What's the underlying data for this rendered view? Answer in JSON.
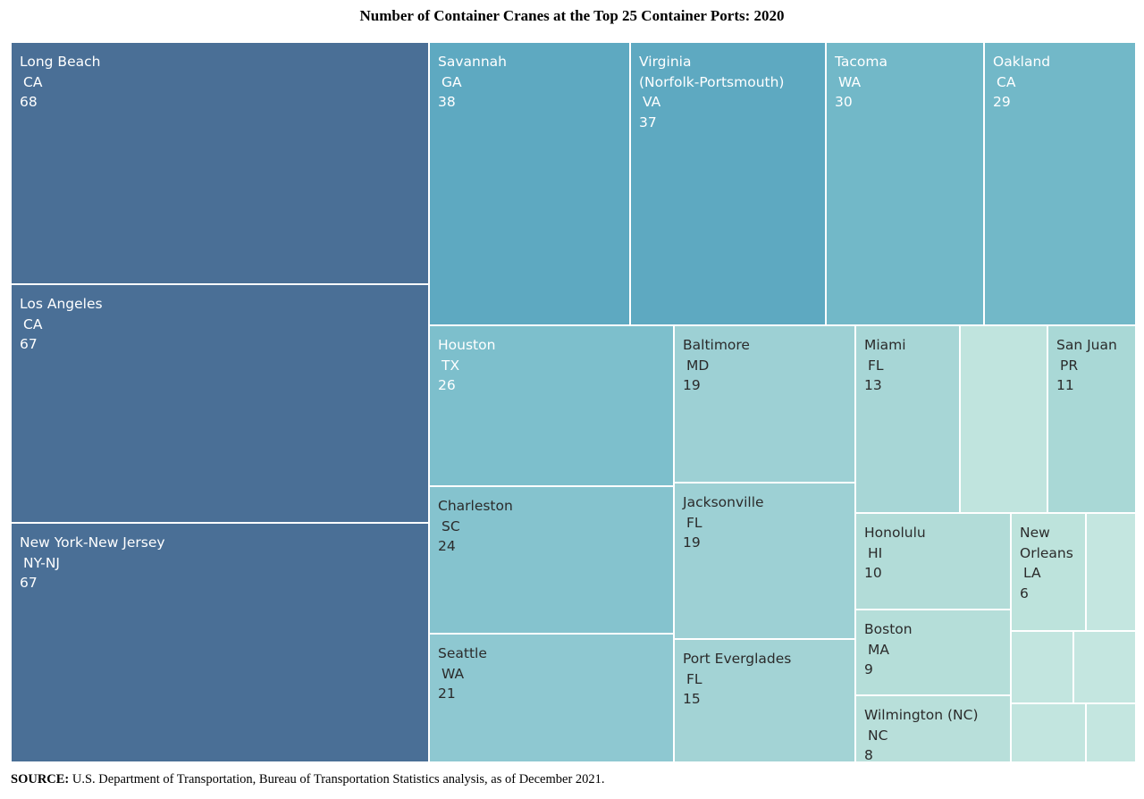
{
  "title": "Number of Container Cranes at the Top 25 Container Ports: 2020",
  "source_label": "SOURCE:",
  "source_text": "U.S. Department of Transportation, Bureau of Transportation Statistics analysis, as of December 2021.",
  "colors": {
    "c68": "#4a6f96",
    "c67": "#4a6f96",
    "c38": "#5ea9c1",
    "c37": "#5ea9c1",
    "c30": "#72b8c8",
    "c29": "#72b8c8",
    "c26": "#7dbfcc",
    "c24": "#85c3ce",
    "c21": "#8ec8d1",
    "c19": "#9dd0d4",
    "c15": "#a3d3d5",
    "c13": "#a7d6d6",
    "c11": "#a9d8d6",
    "c10": "#b2dcd8",
    "c9": "#b5ded9",
    "c8": "#b8dfda",
    "c6": "#bde3dc",
    "c5": "#c2e5df",
    "c4": "#c4e6e0"
  },
  "chart_data": {
    "type": "treemap",
    "title": "Number of Container Cranes at the Top 25 Container Ports: 2020",
    "items": [
      {
        "name": "Long Beach",
        "state": "CA",
        "value": 68
      },
      {
        "name": "Los Angeles",
        "state": "CA",
        "value": 67
      },
      {
        "name": "New York-New Jersey",
        "state": "NY-NJ",
        "value": 67
      },
      {
        "name": "Savannah",
        "state": "GA",
        "value": 38
      },
      {
        "name": "Virginia\n(Norfolk-Portsmouth)",
        "state": "VA",
        "value": 37
      },
      {
        "name": "Tacoma",
        "state": "WA",
        "value": 30
      },
      {
        "name": "Oakland",
        "state": "CA",
        "value": 29
      },
      {
        "name": "Houston",
        "state": "TX",
        "value": 26
      },
      {
        "name": "Charleston",
        "state": "SC",
        "value": 24
      },
      {
        "name": "Seattle",
        "state": "WA",
        "value": 21
      },
      {
        "name": "Baltimore",
        "state": "MD",
        "value": 19
      },
      {
        "name": "Jacksonville",
        "state": "FL",
        "value": 19
      },
      {
        "name": "Port Everglades",
        "state": "FL",
        "value": 15
      },
      {
        "name": "Miami",
        "state": "FL",
        "value": 13
      },
      {
        "name": "",
        "state": "",
        "value": 12
      },
      {
        "name": "San Juan",
        "state": "PR",
        "value": 11
      },
      {
        "name": "Honolulu",
        "state": "HI",
        "value": 10
      },
      {
        "name": "Boston",
        "state": "MA",
        "value": 9
      },
      {
        "name": "Wilmington (NC)",
        "state": "NC",
        "value": 8
      },
      {
        "name": "New\nOrleans",
        "state": "LA",
        "value": 6
      },
      {
        "name": "",
        "state": "",
        "value": 4
      },
      {
        "name": "",
        "state": "",
        "value": 5
      },
      {
        "name": "",
        "state": "",
        "value": 4
      },
      {
        "name": "",
        "state": "",
        "value": 5
      },
      {
        "name": "",
        "state": "",
        "value": 4
      }
    ]
  }
}
